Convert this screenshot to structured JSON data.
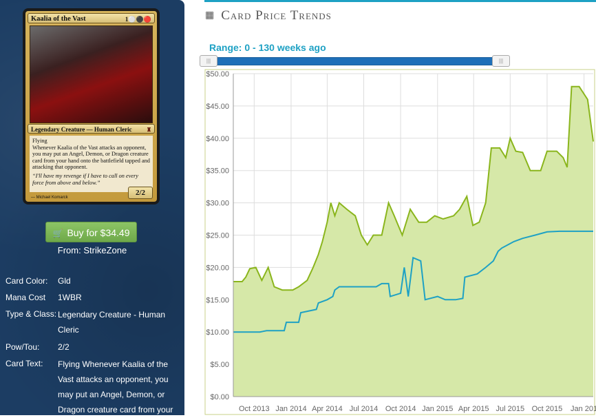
{
  "card": {
    "name": "Kaalia of the Vast",
    "mana_symbols": "1⚪⚫🔴",
    "type_line": "Legendary Creature — Human Cleric",
    "rules_text": "Flying",
    "rules_text_2": "Whenever Kaalia of the Vast attacks an opponent, you may put an Angel, Demon, or Dragon creature card from your hand onto the battlefield tapped and attacking that opponent.",
    "flavor_text": "“I'll have my revenge if I have to call on every force from above and below.”",
    "power_toughness": "2/2",
    "artist": "Michael Komarck"
  },
  "buy": {
    "label": "Buy for $34.49",
    "from": "From: StrikeZone"
  },
  "attributes": [
    {
      "label": "Card Color:",
      "value": "Gld"
    },
    {
      "label": "Mana Cost",
      "value": "1WBR"
    },
    {
      "label": "Type & Class:",
      "value": "Legendary Creature - Human Cleric"
    },
    {
      "label": "Pow/Tou:",
      "value": "2/2"
    },
    {
      "label": "Card Text:",
      "value": "Flying Whenever Kaalia of the Vast attacks an opponent, you may put an Angel, Demon, or Dragon creature card from your"
    }
  ],
  "panel": {
    "title": "Card Price Trends",
    "range_label": "Range: 0 - 130 weeks ago"
  },
  "slider": {
    "min_weeks_ago": 0,
    "max_weeks_ago": 130
  },
  "colors": {
    "series_retail": "#8ab51c",
    "series_fill": "#d6e8a8",
    "series_buy": "#1ea1c4",
    "accent": "#1ea1c4"
  },
  "chart_data": {
    "type": "area",
    "xlabel": "",
    "ylabel": "",
    "ylim": [
      0,
      50
    ],
    "yticks": [
      "$0.00",
      "$5.00",
      "$10.00",
      "$15.00",
      "$20.00",
      "$25.00",
      "$30.00",
      "$35.00",
      "$40.00",
      "$45.00",
      "$50.00"
    ],
    "xticks": [
      "Oct 2013",
      "Jan 2014",
      "Apr 2014",
      "Jul 2014",
      "Oct 2014",
      "Jan 2015",
      "Apr 2015",
      "Jul 2015",
      "Oct 2015",
      "Jan 201"
    ],
    "x_range": [
      "2013-08-10",
      "2016-01-24"
    ],
    "grid": true,
    "series": [
      {
        "points": [
          [
            "2013-08-10",
            17.8
          ],
          [
            "2013-09-01",
            17.8
          ],
          [
            "2013-09-10",
            18.5
          ],
          [
            "2013-09-20",
            19.8
          ],
          [
            "2013-10-05",
            20
          ],
          [
            "2013-10-20",
            18
          ],
          [
            "2013-11-05",
            20
          ],
          [
            "2013-11-20",
            17
          ],
          [
            "2013-12-10",
            16.5
          ],
          [
            "2014-01-05",
            16.5
          ],
          [
            "2014-01-20",
            17
          ],
          [
            "2014-02-10",
            18
          ],
          [
            "2014-02-25",
            20
          ],
          [
            "2014-03-10",
            22
          ],
          [
            "2014-03-20",
            24
          ],
          [
            "2014-04-01",
            27
          ],
          [
            "2014-04-10",
            30
          ],
          [
            "2014-04-20",
            28
          ],
          [
            "2014-05-01",
            30
          ],
          [
            "2014-05-20",
            29
          ],
          [
            "2014-06-10",
            28
          ],
          [
            "2014-06-25",
            25
          ],
          [
            "2014-07-10",
            23.5
          ],
          [
            "2014-07-25",
            25
          ],
          [
            "2014-08-15",
            25
          ],
          [
            "2014-09-01",
            30
          ],
          [
            "2014-09-15",
            28
          ],
          [
            "2014-10-05",
            25
          ],
          [
            "2014-10-25",
            29
          ],
          [
            "2014-11-15",
            27
          ],
          [
            "2014-12-05",
            27
          ],
          [
            "2014-12-25",
            28
          ],
          [
            "2015-01-15",
            27.5
          ],
          [
            "2015-02-10",
            28
          ],
          [
            "2015-02-25",
            29
          ],
          [
            "2015-03-15",
            31
          ],
          [
            "2015-03-30",
            26.5
          ],
          [
            "2015-04-15",
            27
          ],
          [
            "2015-05-01",
            30
          ],
          [
            "2015-05-15",
            38.5
          ],
          [
            "2015-06-05",
            38.5
          ],
          [
            "2015-06-20",
            37
          ],
          [
            "2015-07-01",
            40
          ],
          [
            "2015-07-15",
            38
          ],
          [
            "2015-08-01",
            37.8
          ],
          [
            "2015-08-20",
            35
          ],
          [
            "2015-09-15",
            35
          ],
          [
            "2015-10-01",
            38
          ],
          [
            "2015-10-25",
            38
          ],
          [
            "2015-11-10",
            37
          ],
          [
            "2015-11-20",
            35.5
          ],
          [
            "2015-12-01",
            48
          ],
          [
            "2015-12-20",
            48
          ],
          [
            "2016-01-10",
            46
          ],
          [
            "2016-01-24",
            39.5
          ]
        ]
      },
      {
        "points": [
          [
            "2013-08-10",
            10
          ],
          [
            "2013-10-15",
            10
          ],
          [
            "2013-11-01",
            10.2
          ],
          [
            "2013-12-15",
            10.2
          ],
          [
            "2013-12-20",
            11.5
          ],
          [
            "2014-01-20",
            11.5
          ],
          [
            "2014-01-25",
            13
          ],
          [
            "2014-03-05",
            13.5
          ],
          [
            "2014-03-10",
            14.5
          ],
          [
            "2014-04-01",
            15
          ],
          [
            "2014-04-15",
            15.5
          ],
          [
            "2014-04-20",
            16.5
          ],
          [
            "2014-05-01",
            17
          ],
          [
            "2014-07-15",
            17
          ],
          [
            "2014-08-01",
            17
          ],
          [
            "2014-08-15",
            17.5
          ],
          [
            "2014-09-01",
            17.5
          ],
          [
            "2014-09-05",
            15.5
          ],
          [
            "2014-10-01",
            16
          ],
          [
            "2014-10-10",
            20
          ],
          [
            "2014-10-20",
            15.5
          ],
          [
            "2014-11-01",
            21.5
          ],
          [
            "2014-11-20",
            21
          ],
          [
            "2014-12-01",
            15
          ],
          [
            "2015-01-01",
            15.5
          ],
          [
            "2015-01-20",
            15
          ],
          [
            "2015-02-15",
            15
          ],
          [
            "2015-03-05",
            15.2
          ],
          [
            "2015-03-10",
            18.5
          ],
          [
            "2015-04-10",
            19
          ],
          [
            "2015-05-01",
            20
          ],
          [
            "2015-05-20",
            21
          ],
          [
            "2015-06-01",
            22.5
          ],
          [
            "2015-06-10",
            23
          ],
          [
            "2015-06-25",
            23.5
          ],
          [
            "2015-07-10",
            24
          ],
          [
            "2015-08-01",
            24.5
          ],
          [
            "2015-09-01",
            25
          ],
          [
            "2015-10-01",
            25.5
          ],
          [
            "2015-11-01",
            25.6
          ],
          [
            "2016-01-24",
            25.6
          ]
        ]
      }
    ]
  }
}
